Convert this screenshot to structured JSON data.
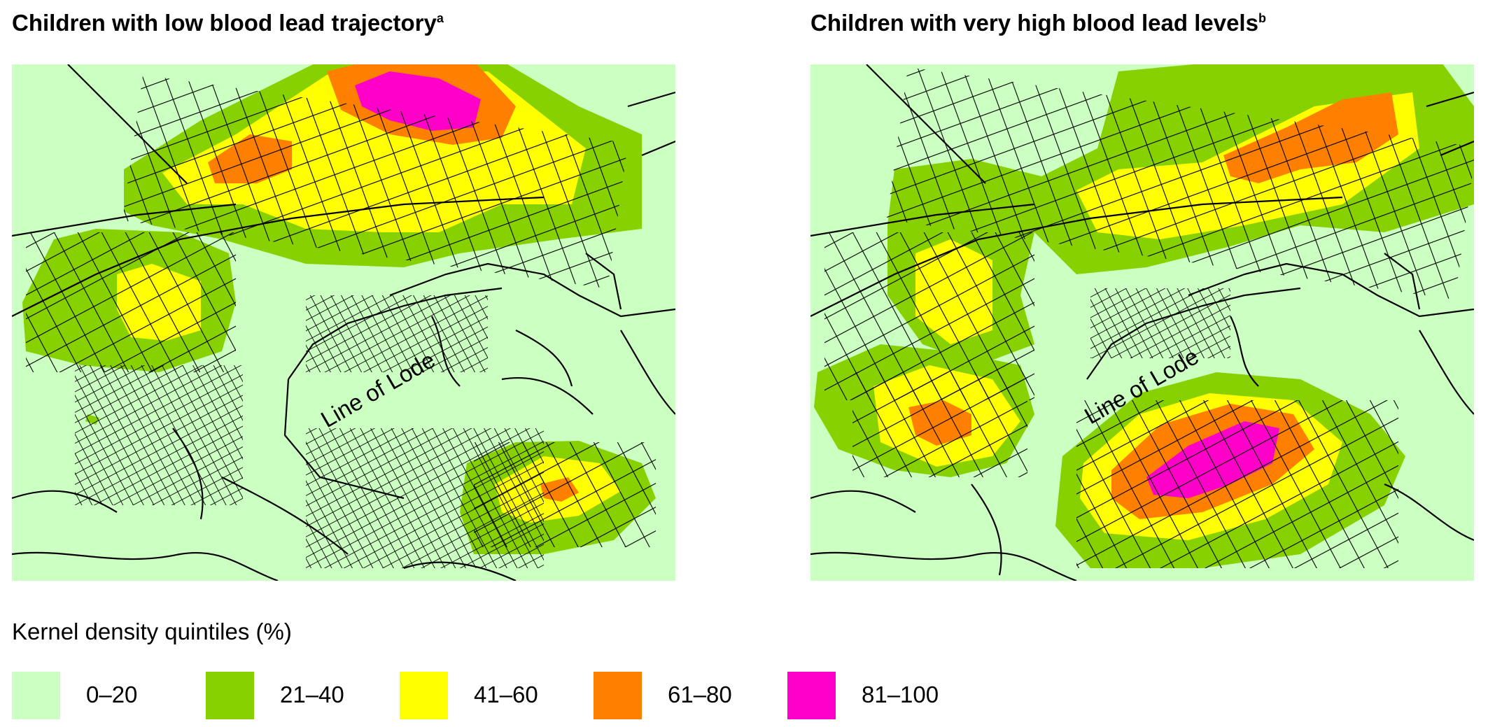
{
  "colors": {
    "q1": "#ccffc2",
    "q2": "#88d100",
    "q3": "#ffff00",
    "q4": "#ff8000",
    "q5": "#ff00c8",
    "road": "#000000"
  },
  "panels": [
    {
      "title": "Children with low blood lead trajectory",
      "superscript": "a",
      "map_label": "Line of Lode"
    },
    {
      "title": "Children with very high blood lead levels",
      "superscript": "b",
      "map_label": "Line of Lode"
    }
  ],
  "legend": {
    "title": "Kernel density quintiles (%)",
    "items": [
      {
        "label": "0–20",
        "color": "#ccffc2"
      },
      {
        "label": "21–40",
        "color": "#88d100"
      },
      {
        "label": "41–60",
        "color": "#ffff00"
      },
      {
        "label": "61–80",
        "color": "#ff8000"
      },
      {
        "label": "81–100",
        "color": "#ff00c8"
      }
    ]
  }
}
